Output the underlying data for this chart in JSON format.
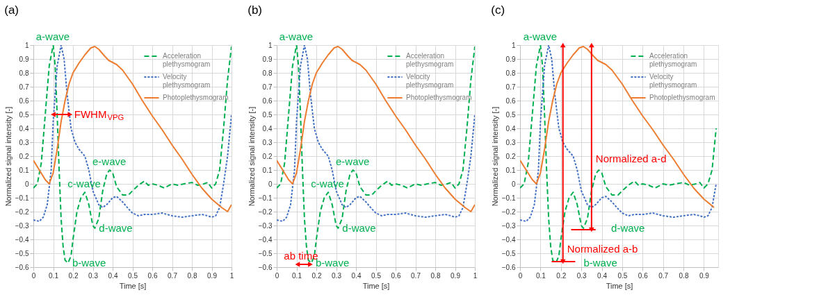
{
  "chart_data": [
    {
      "type": "line",
      "title": "(a)",
      "xlabel": "Time [s]",
      "ylabel": "Normalized signal intensity [-]",
      "xlim": [
        0,
        1
      ],
      "ylim": [
        -0.6,
        1
      ],
      "xticks": [
        0,
        0.1,
        0.2,
        0.3,
        0.4,
        0.5,
        0.6,
        0.7,
        0.8,
        0.9,
        1
      ],
      "yticks": [
        -0.6,
        -0.5,
        -0.4,
        -0.3,
        -0.2,
        -0.1,
        0,
        0.1,
        0.2,
        0.3,
        0.4,
        0.5,
        0.6,
        0.7,
        0.8,
        0.9,
        1
      ],
      "grid": true,
      "legend": "top right",
      "series": [
        {
          "name": "Acceleration plethysmogram",
          "color": "#00b050",
          "line_style": "dashed",
          "x": [
            0,
            0.02,
            0.04,
            0.06,
            0.08,
            0.1,
            0.11,
            0.12,
            0.13,
            0.14,
            0.15,
            0.16,
            0.175,
            0.19,
            0.2,
            0.22,
            0.24,
            0.26,
            0.28,
            0.3,
            0.31,
            0.33,
            0.35,
            0.37,
            0.385,
            0.4,
            0.42,
            0.45,
            0.48,
            0.5,
            0.53,
            0.56,
            0.58,
            0.6,
            0.63,
            0.66,
            0.7,
            0.73,
            0.76,
            0.8,
            0.83,
            0.86,
            0.88,
            0.9,
            0.92,
            0.94,
            0.96,
            0.98,
            1.0
          ],
          "values": [
            -0.03,
            0.0,
            0.15,
            0.5,
            0.85,
            1.0,
            0.85,
            0.5,
            0.1,
            -0.25,
            -0.45,
            -0.55,
            -0.57,
            -0.52,
            -0.4,
            -0.2,
            -0.1,
            -0.06,
            -0.15,
            -0.3,
            -0.32,
            -0.25,
            -0.05,
            0.07,
            0.1,
            0.08,
            -0.02,
            -0.08,
            -0.08,
            -0.05,
            -0.01,
            0.02,
            -0.01,
            0.0,
            -0.01,
            -0.03,
            0.0,
            -0.01,
            0.0,
            0.01,
            -0.01,
            0.0,
            0.01,
            -0.03,
            0.0,
            0.1,
            0.4,
            0.75,
            0.99
          ]
        },
        {
          "name": "Velocity plethysmogram",
          "color": "#4472c4",
          "line_style": "dotted",
          "x": [
            0,
            0.03,
            0.05,
            0.07,
            0.09,
            0.1,
            0.12,
            0.14,
            0.155,
            0.17,
            0.19,
            0.21,
            0.23,
            0.26,
            0.28,
            0.3,
            0.33,
            0.35,
            0.37,
            0.4,
            0.42,
            0.45,
            0.48,
            0.5,
            0.53,
            0.56,
            0.6,
            0.65,
            0.7,
            0.75,
            0.8,
            0.85,
            0.88,
            0.9,
            0.92,
            0.94,
            0.96,
            0.98,
            1.0
          ],
          "values": [
            -0.26,
            -0.27,
            -0.24,
            -0.15,
            0.1,
            0.45,
            0.85,
            1.0,
            0.9,
            0.65,
            0.4,
            0.3,
            0.25,
            0.2,
            0.1,
            -0.05,
            -0.15,
            -0.17,
            -0.15,
            -0.1,
            -0.09,
            -0.13,
            -0.18,
            -0.21,
            -0.23,
            -0.22,
            -0.22,
            -0.21,
            -0.23,
            -0.24,
            -0.23,
            -0.22,
            -0.23,
            -0.24,
            -0.23,
            -0.17,
            0.0,
            0.2,
            0.5
          ]
        },
        {
          "name": "Photoplethysmogram",
          "color": "#ed7d31",
          "line_style": "solid",
          "x": [
            0,
            0.03,
            0.06,
            0.08,
            0.1,
            0.12,
            0.14,
            0.16,
            0.18,
            0.2,
            0.23,
            0.26,
            0.29,
            0.31,
            0.33,
            0.36,
            0.38,
            0.42,
            0.45,
            0.5,
            0.55,
            0.6,
            0.65,
            0.7,
            0.75,
            0.8,
            0.85,
            0.9,
            0.95,
            0.98,
            1.0
          ],
          "values": [
            0.17,
            0.1,
            0.03,
            0.0,
            0.08,
            0.25,
            0.45,
            0.6,
            0.72,
            0.8,
            0.87,
            0.93,
            0.98,
            0.99,
            0.97,
            0.92,
            0.89,
            0.86,
            0.82,
            0.72,
            0.6,
            0.49,
            0.39,
            0.28,
            0.18,
            0.07,
            -0.03,
            -0.11,
            -0.17,
            -0.2,
            -0.15
          ]
        },
        {
          "type": "line",
          "color": "#ff0000",
          "line_style": "solid",
          "marker": "triangle",
          "x": [
            0.1,
            0.185
          ],
          "values": [
            0.5,
            0.5
          ]
        }
      ],
      "annotations": [
        {
          "text": "a-wave",
          "x": 0.1,
          "y": 1.0
        },
        {
          "text": "b-wave",
          "x": 0.175,
          "y": -0.57
        },
        {
          "text": "c-wave",
          "x": 0.26,
          "y": -0.06
        },
        {
          "text": "d-wave",
          "x": 0.31,
          "y": -0.32
        },
        {
          "text": "e-wave",
          "x": 0.385,
          "y": 0.1
        },
        {
          "text": "FWHM$_{VPG}$",
          "x": 0.185,
          "y": 0.5
        }
      ]
    },
    {
      "type": "line",
      "title": "(b)",
      "xlabel": "Time [s]",
      "ylabel": "Normalized signal intensity [-]",
      "xlim": [
        0,
        1
      ],
      "ylim": [
        -0.6,
        1
      ],
      "xticks": [
        0,
        0.1,
        0.2,
        0.3,
        0.4,
        0.5,
        0.6,
        0.7,
        0.8,
        0.9,
        1
      ],
      "yticks": [
        -0.6,
        -0.5,
        -0.4,
        -0.3,
        -0.2,
        -0.1,
        0,
        0.1,
        0.2,
        0.3,
        0.4,
        0.5,
        0.6,
        0.7,
        0.8,
        0.9,
        1
      ],
      "grid": true,
      "legend": "top right",
      "series": [
        {
          "name": "Acceleration plethysmogram",
          "color": "#00b050",
          "line_style": "dashed",
          "x": [
            0,
            0.02,
            0.04,
            0.06,
            0.08,
            0.1,
            0.11,
            0.12,
            0.13,
            0.14,
            0.15,
            0.16,
            0.175,
            0.19,
            0.2,
            0.22,
            0.24,
            0.26,
            0.28,
            0.3,
            0.31,
            0.33,
            0.35,
            0.37,
            0.385,
            0.4,
            0.42,
            0.45,
            0.48,
            0.5,
            0.53,
            0.56,
            0.58,
            0.6,
            0.63,
            0.66,
            0.7,
            0.73,
            0.76,
            0.8,
            0.83,
            0.86,
            0.88,
            0.9,
            0.92,
            0.94,
            0.96,
            0.98,
            1.0
          ],
          "values": [
            -0.03,
            0.0,
            0.15,
            0.5,
            0.85,
            1.0,
            0.85,
            0.5,
            0.1,
            -0.25,
            -0.45,
            -0.55,
            -0.57,
            -0.52,
            -0.4,
            -0.2,
            -0.1,
            -0.06,
            -0.15,
            -0.3,
            -0.32,
            -0.25,
            -0.05,
            0.07,
            0.1,
            0.08,
            -0.02,
            -0.08,
            -0.08,
            -0.05,
            -0.01,
            0.02,
            -0.01,
            0.0,
            -0.01,
            -0.03,
            0.0,
            -0.01,
            0.0,
            0.01,
            -0.01,
            0.0,
            0.01,
            -0.03,
            0.0,
            0.1,
            0.4,
            0.75,
            0.99
          ]
        },
        {
          "name": "Velocity plethysmogram",
          "color": "#4472c4",
          "line_style": "dotted",
          "x": [
            0,
            0.03,
            0.05,
            0.07,
            0.09,
            0.1,
            0.12,
            0.14,
            0.155,
            0.17,
            0.19,
            0.21,
            0.23,
            0.26,
            0.28,
            0.3,
            0.33,
            0.35,
            0.37,
            0.4,
            0.42,
            0.45,
            0.48,
            0.5,
            0.53,
            0.56,
            0.6,
            0.65,
            0.7,
            0.75,
            0.8,
            0.85,
            0.88,
            0.9,
            0.92,
            0.94,
            0.96,
            0.98,
            1.0
          ],
          "values": [
            -0.26,
            -0.27,
            -0.24,
            -0.15,
            0.1,
            0.45,
            0.85,
            1.0,
            0.9,
            0.65,
            0.4,
            0.3,
            0.25,
            0.2,
            0.1,
            -0.05,
            -0.15,
            -0.17,
            -0.15,
            -0.1,
            -0.09,
            -0.13,
            -0.18,
            -0.21,
            -0.23,
            -0.22,
            -0.22,
            -0.21,
            -0.23,
            -0.24,
            -0.23,
            -0.22,
            -0.23,
            -0.24,
            -0.23,
            -0.17,
            0.0,
            0.2,
            0.5
          ]
        },
        {
          "name": "Photoplethysmogram",
          "color": "#ed7d31",
          "line_style": "solid",
          "x": [
            0,
            0.03,
            0.06,
            0.08,
            0.1,
            0.12,
            0.14,
            0.16,
            0.18,
            0.2,
            0.23,
            0.26,
            0.29,
            0.31,
            0.33,
            0.36,
            0.38,
            0.42,
            0.45,
            0.5,
            0.55,
            0.6,
            0.65,
            0.7,
            0.75,
            0.8,
            0.85,
            0.9,
            0.95,
            0.98,
            1.0
          ],
          "values": [
            0.17,
            0.1,
            0.03,
            0.0,
            0.08,
            0.25,
            0.45,
            0.6,
            0.72,
            0.8,
            0.87,
            0.93,
            0.98,
            0.99,
            0.97,
            0.92,
            0.89,
            0.86,
            0.82,
            0.72,
            0.6,
            0.49,
            0.39,
            0.28,
            0.18,
            0.07,
            -0.03,
            -0.11,
            -0.17,
            -0.2,
            -0.15
          ]
        },
        {
          "type": "line",
          "color": "#ff0000",
          "line_style": "solid",
          "marker": "triangle",
          "x": [
            0.105,
            0.17
          ],
          "values": [
            -0.58,
            -0.58
          ]
        }
      ],
      "annotations": [
        {
          "text": "a-wave",
          "x": 0.1,
          "y": 1.0
        },
        {
          "text": "b-wave",
          "x": 0.175,
          "y": -0.57
        },
        {
          "text": "c-wave",
          "x": 0.26,
          "y": -0.06
        },
        {
          "text": "d-wave",
          "x": 0.31,
          "y": -0.32
        },
        {
          "text": "e-wave",
          "x": 0.385,
          "y": 0.1
        },
        {
          "text": "ab time",
          "x": 0.1375,
          "y": -0.58
        }
      ]
    },
    {
      "type": "line",
      "title": "(c)",
      "xlabel": "Time [s]",
      "ylabel": "Normalized signal intensity [-]",
      "xlim": [
        0,
        0.97
      ],
      "ylim": [
        -0.6,
        1
      ],
      "xticks": [
        0,
        0.1,
        0.2,
        0.3,
        0.4,
        0.5,
        0.6,
        0.7,
        0.8,
        0.9
      ],
      "yticks": [
        -0.6,
        -0.5,
        -0.4,
        -0.3,
        -0.2,
        -0.1,
        0,
        0.1,
        0.2,
        0.3,
        0.4,
        0.5,
        0.6,
        0.7,
        0.8,
        0.9,
        1
      ],
      "grid": true,
      "legend": "top right",
      "series": [
        {
          "name": "Acceleration plethysmogram",
          "color": "#00b050",
          "line_style": "dashed",
          "x": [
            0,
            0.02,
            0.04,
            0.06,
            0.08,
            0.1,
            0.11,
            0.12,
            0.13,
            0.14,
            0.15,
            0.16,
            0.175,
            0.19,
            0.2,
            0.22,
            0.24,
            0.26,
            0.28,
            0.3,
            0.31,
            0.33,
            0.35,
            0.37,
            0.385,
            0.4,
            0.42,
            0.45,
            0.48,
            0.5,
            0.53,
            0.56,
            0.58,
            0.6,
            0.63,
            0.66,
            0.7,
            0.73,
            0.76,
            0.8,
            0.83,
            0.86,
            0.88,
            0.9,
            0.92,
            0.94,
            0.96
          ],
          "values": [
            -0.03,
            0.0,
            0.15,
            0.5,
            0.85,
            1.0,
            0.85,
            0.5,
            0.1,
            -0.25,
            -0.45,
            -0.55,
            -0.57,
            -0.52,
            -0.4,
            -0.2,
            -0.1,
            -0.06,
            -0.15,
            -0.3,
            -0.32,
            -0.25,
            -0.05,
            0.07,
            0.1,
            0.08,
            -0.02,
            -0.08,
            -0.08,
            -0.05,
            -0.01,
            0.02,
            -0.01,
            0.0,
            -0.01,
            -0.03,
            0.0,
            -0.01,
            0.0,
            0.01,
            -0.01,
            0.0,
            0.01,
            -0.03,
            0.0,
            0.1,
            0.4
          ]
        },
        {
          "name": "Velocity plethysmogram",
          "color": "#4472c4",
          "line_style": "dotted",
          "x": [
            0,
            0.03,
            0.05,
            0.07,
            0.09,
            0.1,
            0.12,
            0.14,
            0.155,
            0.17,
            0.19,
            0.21,
            0.23,
            0.26,
            0.28,
            0.3,
            0.33,
            0.35,
            0.37,
            0.4,
            0.42,
            0.45,
            0.48,
            0.5,
            0.53,
            0.56,
            0.6,
            0.65,
            0.7,
            0.75,
            0.8,
            0.85,
            0.88,
            0.9,
            0.92,
            0.94,
            0.96
          ],
          "values": [
            -0.26,
            -0.27,
            -0.24,
            -0.15,
            0.1,
            0.45,
            0.85,
            1.0,
            0.9,
            0.65,
            0.4,
            0.3,
            0.25,
            0.2,
            0.1,
            -0.05,
            -0.15,
            -0.17,
            -0.15,
            -0.1,
            -0.09,
            -0.13,
            -0.18,
            -0.21,
            -0.23,
            -0.22,
            -0.22,
            -0.21,
            -0.23,
            -0.24,
            -0.23,
            -0.22,
            -0.23,
            -0.24,
            -0.23,
            -0.17,
            0.0
          ]
        },
        {
          "name": "Photoplethysmogram",
          "color": "#ed7d31",
          "line_style": "solid",
          "x": [
            0,
            0.03,
            0.06,
            0.08,
            0.1,
            0.12,
            0.14,
            0.16,
            0.18,
            0.2,
            0.23,
            0.26,
            0.29,
            0.31,
            0.33,
            0.36,
            0.38,
            0.42,
            0.45,
            0.5,
            0.55,
            0.6,
            0.65,
            0.7,
            0.75,
            0.8,
            0.85,
            0.9,
            0.95
          ],
          "values": [
            0.17,
            0.1,
            0.03,
            0.0,
            0.08,
            0.25,
            0.45,
            0.6,
            0.72,
            0.8,
            0.87,
            0.93,
            0.98,
            0.99,
            0.97,
            0.92,
            0.89,
            0.86,
            0.82,
            0.72,
            0.6,
            0.49,
            0.39,
            0.28,
            0.18,
            0.07,
            -0.03,
            -0.11,
            -0.17
          ]
        },
        {
          "type": "line",
          "color": "#ff0000",
          "line_style": "solid",
          "marker": "triangle",
          "x": [
            0.21,
            0.21
          ],
          "values": [
            -0.56,
            1.0
          ]
        },
        {
          "type": "line",
          "color": "#ff0000",
          "line_style": "solid",
          "marker": "triangle",
          "x": [
            0.35,
            0.35
          ],
          "values": [
            -0.33,
            1.0
          ]
        },
        {
          "type": "line",
          "color": "#ff0000",
          "line_style": "solid",
          "marker": "none",
          "x": [
            0.155,
            0.27
          ],
          "values": [
            -0.56,
            -0.56
          ]
        },
        {
          "type": "line",
          "color": "#ff0000",
          "line_style": "solid",
          "marker": "none",
          "x": [
            0.25,
            0.37
          ],
          "values": [
            -0.33,
            -0.33
          ]
        }
      ],
      "annotations": [
        {
          "text": "a-wave",
          "x": 0.1,
          "y": 1.0
        },
        {
          "text": "b-wave",
          "x": 0.175,
          "y": -0.57
        },
        {
          "text": "d-wave",
          "x": 0.31,
          "y": -0.32
        },
        {
          "text": "Normalized a-d",
          "x": 0.35,
          "y": 0.18
        },
        {
          "text": "Normalized a-b",
          "x": 0.21,
          "y": -0.47
        }
      ]
    }
  ]
}
